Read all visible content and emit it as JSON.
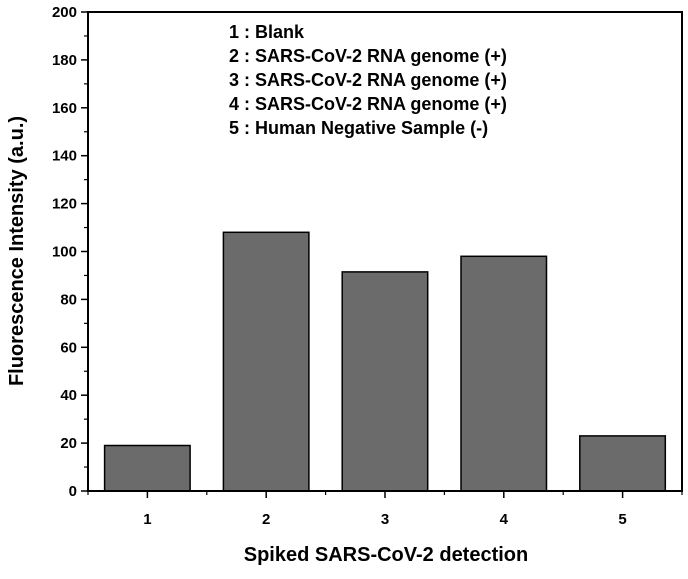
{
  "chart_data": {
    "type": "bar",
    "title": "",
    "xlabel": "Spiked SARS-CoV-2 detection",
    "ylabel": "Fluorescence Intensity (a.u.)",
    "categories": [
      "1",
      "2",
      "3",
      "4",
      "5"
    ],
    "values": [
      19,
      108,
      91.5,
      98,
      23
    ],
    "ylim": [
      0,
      200
    ],
    "yticks": [
      "0",
      "20",
      "40",
      "60",
      "80",
      "100",
      "120",
      "140",
      "160",
      "180",
      "200"
    ],
    "bar_color": "#6b6b6b",
    "grid": false,
    "legend_position": "top-center",
    "legend": [
      "1 : Blank",
      "2 : SARS-CoV-2 RNA genome (+)",
      "3 : SARS-CoV-2 RNA genome (+)",
      "4 : SARS-CoV-2 RNA genome (+)",
      "5 : Human Negative Sample (-)"
    ]
  }
}
